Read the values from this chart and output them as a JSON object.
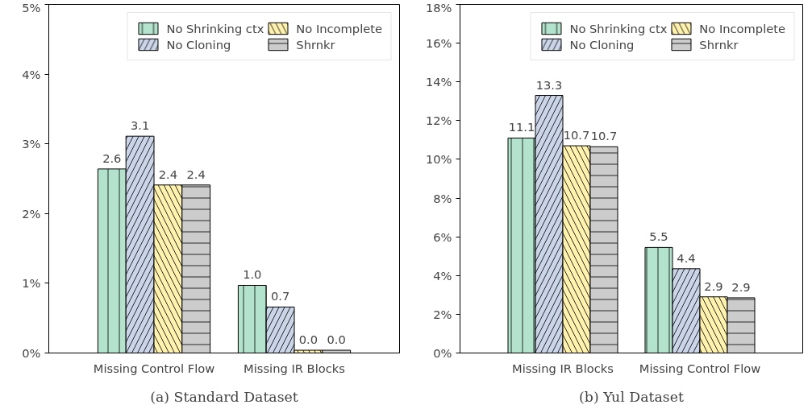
{
  "chart_data": [
    {
      "type": "bar",
      "categories": [
        "Missing Control Flow",
        "Missing IR Blocks"
      ],
      "series": [
        {
          "name": "No Shrinking ctx",
          "color": "#b3e2cd",
          "values": [
            2.64,
            0.97
          ],
          "value_labels": [
            "2.6",
            "1.0"
          ]
        },
        {
          "name": "No Cloning",
          "color": "#cbd5e8",
          "values": [
            3.11,
            0.66
          ],
          "value_labels": [
            "3.1",
            "0.7"
          ]
        },
        {
          "name": "No Incomplete",
          "color": "#fff2ae",
          "values": [
            2.41,
            0.04
          ],
          "value_labels": [
            "2.4",
            "0.0"
          ]
        },
        {
          "name": "Shrnkr",
          "color": "#cccccc",
          "values": [
            2.41,
            0.04
          ],
          "value_labels": [
            "2.4",
            "0.0"
          ]
        }
      ],
      "ylim": [
        0,
        5
      ],
      "yticks": [
        {
          "value": 0,
          "label": "0%"
        },
        {
          "value": 1,
          "label": "1%"
        },
        {
          "value": 2,
          "label": "2%"
        },
        {
          "value": 3,
          "label": "3%"
        },
        {
          "value": 4,
          "label": "4%"
        },
        {
          "value": 5,
          "label": "5%"
        }
      ],
      "legend": "top right",
      "grid": false,
      "annotations": [
        "(a) Standard Dataset"
      ]
    },
    {
      "type": "bar",
      "categories": [
        "Missing IR Blocks",
        "Missing Control Flow"
      ],
      "series": [
        {
          "name": "No Shrinking ctx",
          "color": "#b3e2cd",
          "values": [
            11.1,
            5.45
          ],
          "value_labels": [
            "11.1",
            "5.5"
          ]
        },
        {
          "name": "No Cloning",
          "color": "#cbd5e8",
          "values": [
            13.3,
            4.35
          ],
          "value_labels": [
            "13.3",
            "4.4"
          ]
        },
        {
          "name": "No Incomplete",
          "color": "#fff2ae",
          "values": [
            10.7,
            2.9
          ],
          "value_labels": [
            "10.7",
            "2.9"
          ]
        },
        {
          "name": "Shrnkr",
          "color": "#cccccc",
          "values": [
            10.65,
            2.85
          ],
          "value_labels": [
            "10.7",
            "2.9"
          ]
        }
      ],
      "ylim": [
        0,
        18
      ],
      "yticks": [
        {
          "value": 0,
          "label": "0%"
        },
        {
          "value": 2,
          "label": "2%"
        },
        {
          "value": 4,
          "label": "4%"
        },
        {
          "value": 6,
          "label": "6%"
        },
        {
          "value": 8,
          "label": "8%"
        },
        {
          "value": 10,
          "label": "10%"
        },
        {
          "value": 12,
          "label": "12%"
        },
        {
          "value": 14,
          "label": "14%"
        },
        {
          "value": 16,
          "label": "16%"
        },
        {
          "value": 18,
          "label": "18%"
        }
      ],
      "legend": "top right",
      "grid": false,
      "annotations": [
        "(b) Yul Dataset"
      ]
    }
  ]
}
